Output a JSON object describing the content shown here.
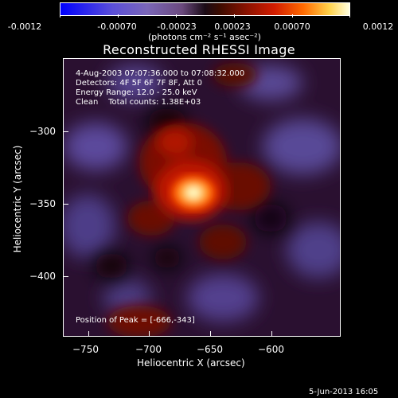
{
  "colorbar": {
    "labels": [
      "-0.0012",
      "-0.00070",
      "-0.00023",
      "0.00023",
      "0.00070",
      "0.0012"
    ],
    "units": "(photons cm⁻² s⁻¹ asec⁻²)"
  },
  "title": "Reconstructed RHESSI Image",
  "info": {
    "time": "4-Aug-2003 07:07:36.000 to 07:08:32.000",
    "detectors": "Detectors: 4F 5F 6F 7F 8F, Att 0",
    "energy": "Energy Range: 12.0 - 25.0 keV",
    "clean": "Clean    Total counts: 1.38E+03",
    "peak": "Position of Peak = [-666,-343]"
  },
  "axes": {
    "xlabel": "Heliocentric X (arcsec)",
    "ylabel": "Heliocentric Y (arcsec)",
    "xticks": [
      "−750",
      "−700",
      "−650",
      "−600"
    ],
    "yticks": [
      "−300",
      "−350",
      "−400"
    ]
  },
  "timestamp": "5-Jun-2013 16:05",
  "colors": {
    "background": "#000000",
    "peak": "#ffffcc",
    "hot": "#ff4400",
    "cold": "#5b4a9a"
  }
}
